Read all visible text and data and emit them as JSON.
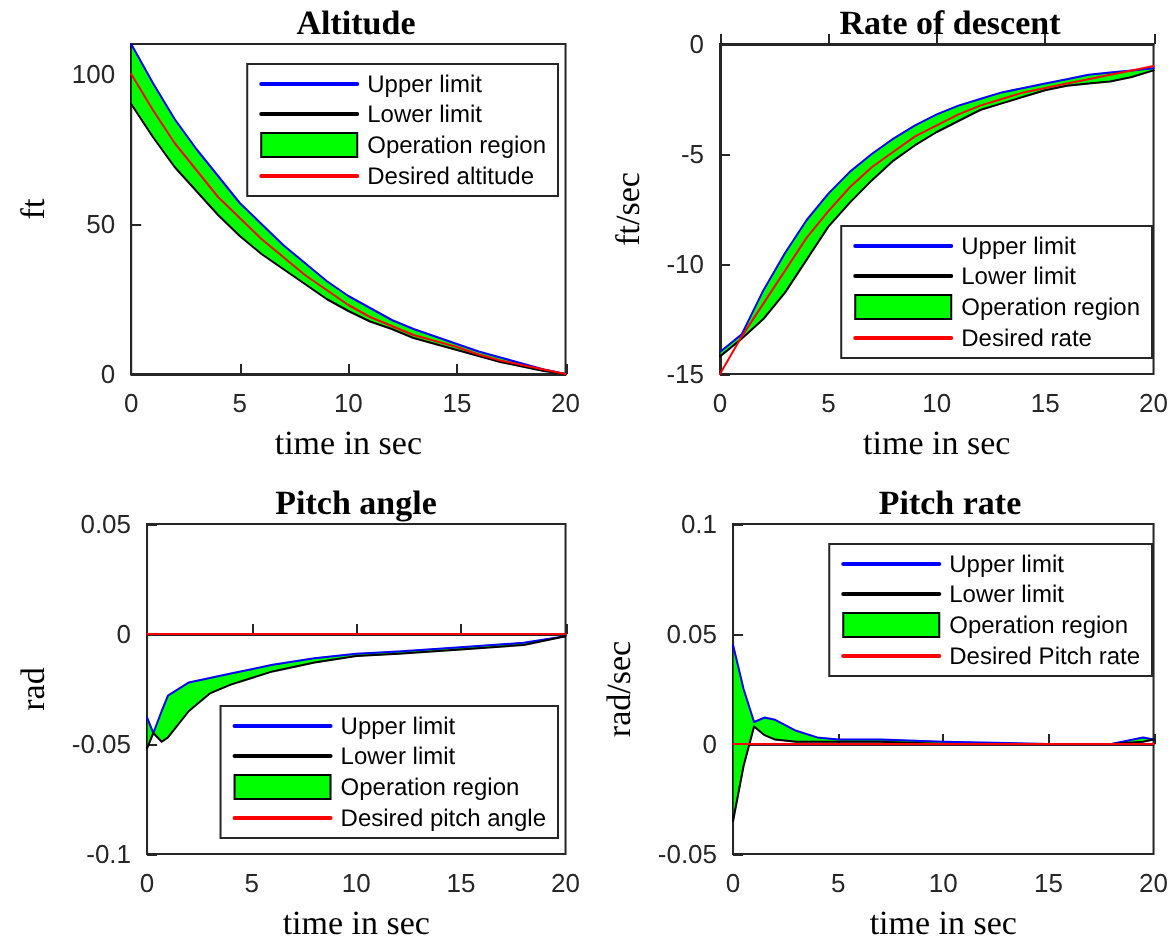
{
  "chart_data": [
    {
      "type": "line",
      "title": "Altitude",
      "xlabel": "time in sec",
      "ylabel": "ft",
      "x": [
        0,
        1,
        2,
        3,
        4,
        5,
        6,
        7,
        8,
        9,
        10,
        11,
        12,
        13,
        14,
        15,
        16,
        17,
        18,
        19,
        20
      ],
      "xlim": [
        0,
        20
      ],
      "xticks": [
        0,
        5,
        10,
        15,
        20
      ],
      "ylim": [
        0,
        110
      ],
      "yticks": [
        0,
        50,
        100
      ],
      "legend": "top right",
      "marker": "none",
      "line_style": "solid",
      "series": [
        {
          "name": "Upper limit",
          "color": "#0000ff",
          "values": [
            110,
            97,
            85,
            75,
            66,
            57,
            50,
            43,
            37,
            31,
            26,
            22,
            18,
            15,
            12.5,
            10,
            7.5,
            5.5,
            3.5,
            1.5,
            0
          ]
        },
        {
          "name": "Lower limit",
          "color": "#000000",
          "values": [
            90,
            79,
            69,
            61,
            53,
            46,
            40,
            35,
            30,
            25,
            21,
            17.5,
            15,
            12,
            10,
            8,
            6,
            4,
            2.5,
            1,
            0
          ]
        },
        {
          "name": "Operation region",
          "color": "#00ff00",
          "values": [
            null,
            null,
            null,
            null,
            null,
            null,
            null,
            null,
            null,
            null,
            null,
            null,
            null,
            null,
            null,
            null,
            null,
            null,
            null,
            null,
            null
          ],
          "upper": [
            110,
            97,
            85,
            75,
            66,
            57,
            50,
            43,
            37,
            31,
            26,
            22,
            18,
            15,
            12.5,
            10,
            7.5,
            5.5,
            3.5,
            1.5,
            0
          ],
          "lower": [
            90,
            79,
            69,
            61,
            53,
            46,
            40,
            35,
            30,
            25,
            21,
            17.5,
            15,
            12,
            10,
            8,
            6,
            4,
            2.5,
            1,
            0
          ]
        },
        {
          "name": "Desired altitude",
          "color": "#ff0000",
          "values": [
            100,
            88,
            77,
            68,
            59,
            52,
            45,
            39,
            33,
            28,
            23,
            19,
            16,
            13,
            11,
            9,
            6.5,
            4.5,
            3,
            1.5,
            0
          ]
        }
      ]
    },
    {
      "type": "line",
      "title": "Rate of descent",
      "xlabel": "time in sec",
      "ylabel": "ft/sec",
      "x": [
        0,
        1,
        2,
        3,
        4,
        5,
        6,
        7,
        8,
        9,
        10,
        11,
        12,
        13,
        14,
        15,
        16,
        17,
        18,
        19,
        20
      ],
      "xlim": [
        0,
        20
      ],
      "xticks": [
        0,
        5,
        10,
        15,
        20
      ],
      "ylim": [
        -15,
        0
      ],
      "yticks": [
        -15,
        -10,
        -5,
        0
      ],
      "legend": "bottom right",
      "marker": "none",
      "line_style": "solid",
      "series": [
        {
          "name": "Upper limit",
          "color": "#0000ff",
          "values": [
            -14,
            -13.2,
            -11.2,
            -9.5,
            -8,
            -6.8,
            -5.8,
            -5,
            -4.3,
            -3.7,
            -3.2,
            -2.8,
            -2.5,
            -2.2,
            -2,
            -1.8,
            -1.6,
            -1.4,
            -1.3,
            -1.2,
            -1.1
          ]
        },
        {
          "name": "Lower limit",
          "color": "#000000",
          "values": [
            -14.2,
            -13.4,
            -12.5,
            -11.3,
            -9.8,
            -8.3,
            -7.2,
            -6.2,
            -5.3,
            -4.6,
            -4,
            -3.5,
            -3,
            -2.7,
            -2.4,
            -2.1,
            -1.9,
            -1.8,
            -1.7,
            -1.5,
            -1.2
          ]
        },
        {
          "name": "Operation region",
          "color": "#00ff00",
          "values": [
            null,
            null,
            null,
            null,
            null,
            null,
            null,
            null,
            null,
            null,
            null,
            null,
            null,
            null,
            null,
            null,
            null,
            null,
            null,
            null,
            null
          ],
          "upper": [
            -14,
            -13.2,
            -11.2,
            -9.5,
            -8,
            -6.8,
            -5.8,
            -5,
            -4.3,
            -3.7,
            -3.2,
            -2.8,
            -2.5,
            -2.2,
            -2,
            -1.8,
            -1.6,
            -1.4,
            -1.3,
            -1.2,
            -1.1
          ],
          "lower": [
            -14.2,
            -13.4,
            -12.5,
            -11.3,
            -9.8,
            -8.3,
            -7.2,
            -6.2,
            -5.3,
            -4.6,
            -4,
            -3.5,
            -3,
            -2.7,
            -2.4,
            -2.1,
            -1.9,
            -1.8,
            -1.7,
            -1.5,
            -1.2
          ]
        },
        {
          "name": "Desired rate",
          "color": "#ff0000",
          "values": [
            -15,
            -13.3,
            -11.8,
            -10.3,
            -8.8,
            -7.6,
            -6.5,
            -5.6,
            -4.9,
            -4.2,
            -3.7,
            -3.2,
            -2.8,
            -2.5,
            -2.2,
            -2,
            -1.8,
            -1.6,
            -1.4,
            -1.2,
            -1
          ]
        }
      ]
    },
    {
      "type": "line",
      "title": "Pitch angle",
      "xlabel": "time in sec",
      "ylabel": "rad",
      "x": [
        0,
        0.3,
        0.7,
        1,
        2,
        3,
        4,
        5,
        6,
        8,
        10,
        12,
        15,
        18,
        20
      ],
      "xlim": [
        0,
        20
      ],
      "xticks": [
        0,
        5,
        10,
        15,
        20
      ],
      "ylim": [
        -0.1,
        0.05
      ],
      "yticks": [
        -0.1,
        -0.05,
        0,
        0.05
      ],
      "legend": "bottom right",
      "marker": "none",
      "line_style": "solid",
      "series": [
        {
          "name": "Upper limit",
          "color": "#0000ff",
          "values": [
            -0.038,
            -0.045,
            -0.035,
            -0.028,
            -0.022,
            -0.02,
            -0.018,
            -0.016,
            -0.014,
            -0.011,
            -0.009,
            -0.008,
            -0.006,
            -0.004,
            -0.001
          ]
        },
        {
          "name": "Lower limit",
          "color": "#000000",
          "values": [
            -0.052,
            -0.045,
            -0.049,
            -0.047,
            -0.035,
            -0.027,
            -0.023,
            -0.02,
            -0.017,
            -0.013,
            -0.01,
            -0.009,
            -0.007,
            -0.005,
            -0.001
          ]
        },
        {
          "name": "Operation region",
          "color": "#00ff00",
          "values": [
            null,
            null,
            null,
            null,
            null,
            null,
            null,
            null,
            null,
            null,
            null,
            null,
            null,
            null,
            null
          ],
          "upper": [
            -0.038,
            -0.045,
            -0.035,
            -0.028,
            -0.022,
            -0.02,
            -0.018,
            -0.016,
            -0.014,
            -0.011,
            -0.009,
            -0.008,
            -0.006,
            -0.004,
            -0.001
          ],
          "lower": [
            -0.052,
            -0.045,
            -0.049,
            -0.047,
            -0.035,
            -0.027,
            -0.023,
            -0.02,
            -0.017,
            -0.013,
            -0.01,
            -0.009,
            -0.007,
            -0.005,
            -0.001
          ]
        },
        {
          "name": "Desired pitch angle",
          "color": "#ff0000",
          "values": [
            0,
            0,
            0,
            0,
            0,
            0,
            0,
            0,
            0,
            0,
            0,
            0,
            0,
            0,
            0
          ]
        }
      ]
    },
    {
      "type": "line",
      "title": "Pitch rate",
      "xlabel": "time in sec",
      "ylabel": "rad/sec",
      "x": [
        0,
        0.5,
        1,
        1.5,
        2,
        3,
        4,
        5,
        7,
        10,
        15,
        18,
        19.5,
        20
      ],
      "xlim": [
        0,
        20
      ],
      "xticks": [
        0,
        5,
        10,
        15,
        20
      ],
      "ylim": [
        -0.05,
        0.1
      ],
      "yticks": [
        -0.05,
        0,
        0.05,
        0.1
      ],
      "legend": "top right",
      "marker": "none",
      "line_style": "solid",
      "series": [
        {
          "name": "Upper limit",
          "color": "#0000ff",
          "values": [
            0.045,
            0.025,
            0.01,
            0.012,
            0.011,
            0.006,
            0.003,
            0.002,
            0.002,
            0.001,
            0,
            0,
            0.003,
            0.002
          ]
        },
        {
          "name": "Lower limit",
          "color": "#000000",
          "values": [
            -0.035,
            -0.01,
            0.008,
            0.004,
            0.002,
            0.001,
            0.001,
            0.001,
            0.001,
            0,
            0,
            0,
            0.001,
            0.002
          ]
        },
        {
          "name": "Operation region",
          "color": "#00ff00",
          "values": [
            null,
            null,
            null,
            null,
            null,
            null,
            null,
            null,
            null,
            null,
            null,
            null,
            null,
            null
          ],
          "upper": [
            0.045,
            0.025,
            0.01,
            0.012,
            0.011,
            0.006,
            0.003,
            0.002,
            0.002,
            0.001,
            0,
            0,
            0.003,
            0.002
          ],
          "lower": [
            -0.035,
            -0.01,
            0.008,
            0.004,
            0.002,
            0.001,
            0.001,
            0.001,
            0.001,
            0,
            0,
            0,
            0.001,
            0.002
          ]
        },
        {
          "name": "Desired Pitch rate",
          "color": "#ff0000",
          "values": [
            0,
            0,
            0,
            0,
            0,
            0,
            0,
            0,
            0,
            0,
            0,
            0,
            0,
            0
          ]
        }
      ]
    }
  ]
}
